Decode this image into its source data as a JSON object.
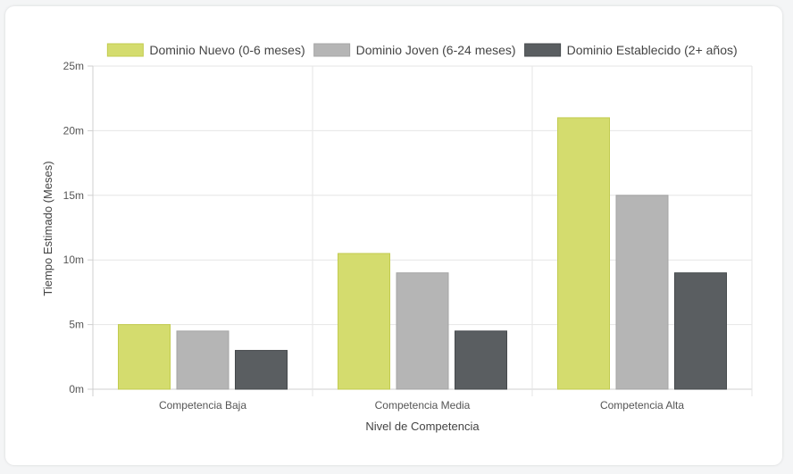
{
  "chart_data": {
    "type": "bar",
    "categories": [
      "Competencia Baja",
      "Competencia Media",
      "Competencia Alta"
    ],
    "series": [
      {
        "name": "Dominio Nuevo (0-6 meses)",
        "values": [
          5,
          10.5,
          21
        ],
        "color": "#d4dc6e",
        "border": "#c2cb4f"
      },
      {
        "name": "Dominio Joven (6-24 meses)",
        "values": [
          4.5,
          9,
          15
        ],
        "color": "#b5b5b5",
        "border": "#a5a5a5"
      },
      {
        "name": "Dominio Establecido (2+ años)",
        "values": [
          3,
          4.5,
          9
        ],
        "color": "#5a5e61",
        "border": "#45494c"
      }
    ],
    "xlabel": "Nivel de Competencia",
    "ylabel": "Tiempo Estimado (Meses)",
    "ylim": [
      0,
      25
    ],
    "yticks": [
      {
        "value": 0,
        "label": "0m"
      },
      {
        "value": 5,
        "label": "5m"
      },
      {
        "value": 10,
        "label": "10m"
      },
      {
        "value": 15,
        "label": "15m"
      },
      {
        "value": 20,
        "label": "20m"
      },
      {
        "value": 25,
        "label": "25m"
      }
    ],
    "grid": true,
    "legend": "top"
  }
}
